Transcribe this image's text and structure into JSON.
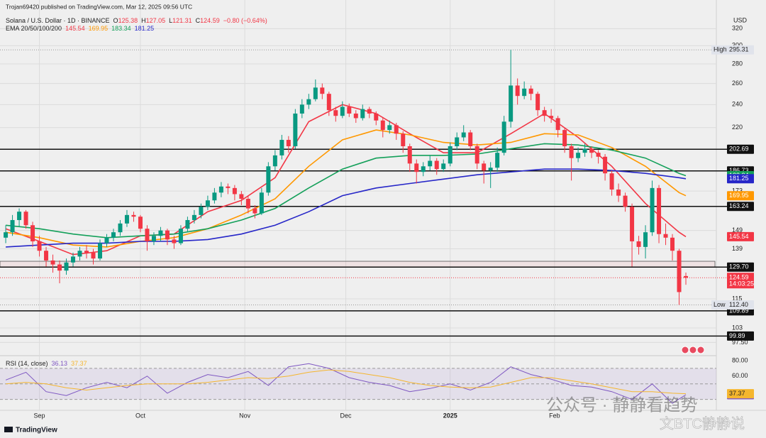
{
  "chart_data": {
    "type": "candlestick",
    "header": "Trojan69420 published on TradingView.com, Mar 12, 2025 09:56 UTC",
    "title": "Solana / U.S. Dollar · 1D · BINANCE",
    "ohlc_keys": [
      "O",
      "H",
      "L",
      "C"
    ],
    "change": "−0.80 (−0.64%)",
    "currency": "USD",
    "countdown": "14:03:25",
    "log": true,
    "grid": true,
    "up_color": "#089981",
    "down_color": "#f23645",
    "xlim": [
      -1.7,
      210
    ],
    "xticks": [
      {
        "value": 10,
        "label": "Sep"
      },
      {
        "value": 40,
        "label": "Oct"
      },
      {
        "value": 71,
        "label": "Nov"
      },
      {
        "value": 101,
        "label": "Dec"
      },
      {
        "value": 132,
        "label": "2025"
      },
      {
        "value": 163,
        "label": "Feb"
      }
    ],
    "ylim": [
      93,
      338
    ],
    "yticks": [
      320,
      300,
      280,
      260,
      240,
      220,
      173,
      149,
      139,
      115,
      103,
      {
        "value": 97.5,
        "label": "97.50"
      }
    ],
    "x": [
      0,
      2,
      4,
      6,
      8,
      10,
      12,
      14,
      16,
      18,
      20,
      22,
      24,
      26,
      28,
      30,
      32,
      34,
      36,
      38,
      40,
      42,
      44,
      46,
      48,
      50,
      52,
      54,
      56,
      58,
      60,
      62,
      64,
      66,
      68,
      70,
      72,
      74,
      76,
      78,
      80,
      82,
      84,
      86,
      88,
      90,
      92,
      94,
      96,
      98,
      100,
      102,
      104,
      106,
      108,
      110,
      112,
      114,
      116,
      118,
      120,
      122,
      124,
      126,
      128,
      130,
      132,
      134,
      136,
      138,
      140,
      142,
      144,
      146,
      148,
      150,
      152,
      154,
      156,
      158,
      160,
      162,
      164,
      166,
      168,
      170,
      172,
      174,
      176,
      178,
      180,
      182,
      184,
      186,
      188,
      190,
      192,
      194,
      196,
      198,
      200,
      202
    ],
    "candles": [
      [
        145,
        152,
        142,
        148
      ],
      [
        148,
        158,
        146,
        155
      ],
      [
        155,
        162,
        151,
        160
      ],
      [
        160,
        161,
        150,
        152
      ],
      [
        152,
        154,
        140,
        143
      ],
      [
        143,
        146,
        135,
        138
      ],
      [
        138,
        140,
        130,
        133
      ],
      [
        133,
        136,
        127,
        131
      ],
      [
        131,
        133,
        122,
        128
      ],
      [
        128,
        134,
        126,
        132
      ],
      [
        132,
        137,
        130,
        135
      ],
      [
        135,
        140,
        133,
        138
      ],
      [
        138,
        141,
        134,
        137
      ],
      [
        137,
        139,
        131,
        134
      ],
      [
        134,
        144,
        133,
        142
      ],
      [
        142,
        147,
        140,
        145
      ],
      [
        145,
        150,
        143,
        148
      ],
      [
        148,
        155,
        146,
        153
      ],
      [
        153,
        161,
        151,
        158
      ],
      [
        158,
        160,
        154,
        157
      ],
      [
        157,
        158,
        148,
        150
      ],
      [
        150,
        152,
        138,
        143
      ],
      [
        143,
        148,
        141,
        146
      ],
      [
        146,
        151,
        143,
        149
      ],
      [
        149,
        150,
        141,
        144
      ],
      [
        144,
        146,
        139,
        142
      ],
      [
        142,
        152,
        141,
        150
      ],
      [
        150,
        157,
        148,
        155
      ],
      [
        155,
        161,
        153,
        158
      ],
      [
        158,
        165,
        156,
        163
      ],
      [
        163,
        170,
        161,
        167
      ],
      [
        167,
        175,
        165,
        172
      ],
      [
        172,
        179,
        169,
        176
      ],
      [
        176,
        178,
        171,
        175
      ],
      [
        175,
        177,
        167,
        171
      ],
      [
        171,
        173,
        164,
        168
      ],
      [
        168,
        170,
        159,
        162
      ],
      [
        162,
        164,
        156,
        159
      ],
      [
        159,
        175,
        158,
        172
      ],
      [
        172,
        193,
        170,
        190
      ],
      [
        190,
        202,
        187,
        198
      ],
      [
        198,
        214,
        195,
        210
      ],
      [
        210,
        213,
        200,
        205
      ],
      [
        205,
        236,
        203,
        232
      ],
      [
        232,
        245,
        228,
        240
      ],
      [
        240,
        250,
        236,
        245
      ],
      [
        245,
        264,
        243,
        256
      ],
      [
        256,
        260,
        245,
        250
      ],
      [
        250,
        252,
        230,
        235
      ],
      [
        235,
        238,
        225,
        230
      ],
      [
        230,
        243,
        228,
        238
      ],
      [
        238,
        241,
        229,
        232
      ],
      [
        232,
        235,
        224,
        228
      ],
      [
        228,
        240,
        226,
        236
      ],
      [
        236,
        238,
        228,
        232
      ],
      [
        232,
        234,
        222,
        226
      ],
      [
        226,
        229,
        212,
        218
      ],
      [
        218,
        226,
        215,
        222
      ],
      [
        222,
        224,
        210,
        215
      ],
      [
        215,
        217,
        200,
        205
      ],
      [
        205,
        207,
        186,
        192
      ],
      [
        192,
        195,
        178,
        186
      ],
      [
        186,
        193,
        183,
        190
      ],
      [
        190,
        198,
        187,
        194
      ],
      [
        194,
        196,
        184,
        188
      ],
      [
        188,
        195,
        186,
        192
      ],
      [
        192,
        208,
        190,
        205
      ],
      [
        205,
        216,
        202,
        212
      ],
      [
        212,
        222,
        209,
        216
      ],
      [
        216,
        218,
        202,
        205
      ],
      [
        205,
        207,
        188,
        192
      ],
      [
        192,
        194,
        178,
        187
      ],
      [
        187,
        193,
        175,
        189
      ],
      [
        189,
        204,
        186,
        200
      ],
      [
        200,
        230,
        198,
        225
      ],
      [
        225,
        295.31,
        220,
        258
      ],
      [
        258,
        265,
        240,
        248
      ],
      [
        248,
        262,
        245,
        255
      ],
      [
        255,
        258,
        244,
        250
      ],
      [
        250,
        252,
        230,
        235
      ],
      [
        235,
        238,
        225,
        230
      ],
      [
        230,
        236,
        224,
        228
      ],
      [
        228,
        230,
        212,
        218
      ],
      [
        218,
        220,
        200,
        205
      ],
      [
        205,
        207,
        180,
        196
      ],
      [
        196,
        204,
        193,
        200
      ],
      [
        200,
        207,
        197,
        203
      ],
      [
        203,
        205,
        196,
        200
      ],
      [
        200,
        202,
        192,
        197
      ],
      [
        197,
        199,
        180,
        185
      ],
      [
        185,
        187,
        170,
        174
      ],
      [
        174,
        178,
        166,
        170
      ],
      [
        170,
        172,
        160,
        163
      ],
      [
        163,
        165,
        130,
        143
      ],
      [
        143,
        146,
        136,
        140
      ],
      [
        140,
        152,
        134,
        148
      ],
      [
        148,
        180,
        146,
        175
      ],
      [
        175,
        177,
        142,
        147
      ],
      [
        147,
        153,
        141,
        145
      ],
      [
        145,
        147,
        133,
        138
      ],
      [
        138,
        139,
        112.4,
        118
      ],
      [
        125.38,
        127.05,
        121.31,
        124.59
      ]
    ],
    "indicators": {
      "name": "EMA 20/50/100/200",
      "x": [
        0,
        10,
        20,
        30,
        40,
        50,
        60,
        70,
        80,
        90,
        100,
        110,
        120,
        130,
        140,
        150,
        160,
        170,
        180,
        190,
        200,
        202
      ],
      "series": [
        {
          "color": "#f23645",
          "values": [
            150,
            143,
            136,
            138,
            146,
            147,
            160,
            167,
            182,
            225,
            240,
            232,
            215,
            200,
            200,
            215,
            232,
            212,
            190,
            165,
            148,
            145.54
          ]
        },
        {
          "color": "#ff9800",
          "values": [
            148,
            145,
            141,
            140,
            143,
            145,
            150,
            158,
            168,
            190,
            210,
            218,
            214,
            208,
            206,
            208,
            215,
            214,
            204,
            190,
            172,
            169.95
          ]
        },
        {
          "color": "#14a05a",
          "values": [
            152,
            150,
            147,
            145,
            146,
            147,
            150,
            155,
            162,
            175,
            188,
            196,
            198,
            198,
            199,
            203,
            207,
            206,
            202,
            196,
            185,
            183.34
          ]
        },
        {
          "color": "#2626c8",
          "values": [
            140,
            141,
            142,
            142,
            143,
            143,
            144,
            147,
            152,
            160,
            170,
            175,
            178,
            181,
            184,
            186,
            188,
            188,
            187,
            185,
            182,
            181.25
          ]
        }
      ]
    },
    "levels": {
      "values": [
        202.69,
        186.73,
        163.24,
        129.7,
        109.89,
        99.89
      ],
      "value_labels": [
        "202.69",
        "186.73",
        "163.24",
        "129.70",
        "109.89",
        "99.89"
      ]
    },
    "zone": {
      "from": 129.7,
      "to": 132.6
    },
    "extremes": [
      {
        "label": "High",
        "value": 295.31
      },
      {
        "label": "Low",
        "value": 112.4,
        "value_label": "112.40"
      }
    ],
    "rsi": {
      "title": "RSI (14, close)",
      "x": [
        0,
        6,
        12,
        18,
        24,
        30,
        36,
        42,
        48,
        54,
        60,
        66,
        72,
        78,
        84,
        90,
        96,
        102,
        108,
        114,
        120,
        126,
        132,
        138,
        144,
        150,
        156,
        162,
        168,
        174,
        180,
        186,
        192,
        198,
        202
      ],
      "ylim": [
        16,
        84.5
      ],
      "yticks": [
        {
          "value": 80,
          "label": "80.00"
        },
        {
          "value": 60,
          "label": "60.00"
        }
      ],
      "levels": [
        70,
        50,
        30
      ],
      "series": [
        {
          "color": "#7e57c2",
          "values": [
            55,
            65,
            40,
            35,
            45,
            52,
            45,
            60,
            38,
            52,
            62,
            58,
            66,
            48,
            72,
            76,
            70,
            58,
            52,
            48,
            40,
            44,
            50,
            42,
            52,
            72,
            62,
            56,
            48,
            46,
            40,
            30,
            50,
            25,
            36.13
          ]
        },
        {
          "color": "#f5b62e",
          "values": [
            50,
            52,
            50,
            45,
            42,
            45,
            48,
            50,
            50,
            50,
            52,
            55,
            58,
            57,
            60,
            65,
            68,
            66,
            62,
            58,
            52,
            48,
            46,
            45,
            46,
            52,
            58,
            58,
            54,
            50,
            45,
            40,
            40,
            38,
            37.37
          ]
        }
      ]
    },
    "watermark": [
      "公众号 · 静静看趋势",
      "文BTC静静说"
    ],
    "logo": "TradingView"
  }
}
